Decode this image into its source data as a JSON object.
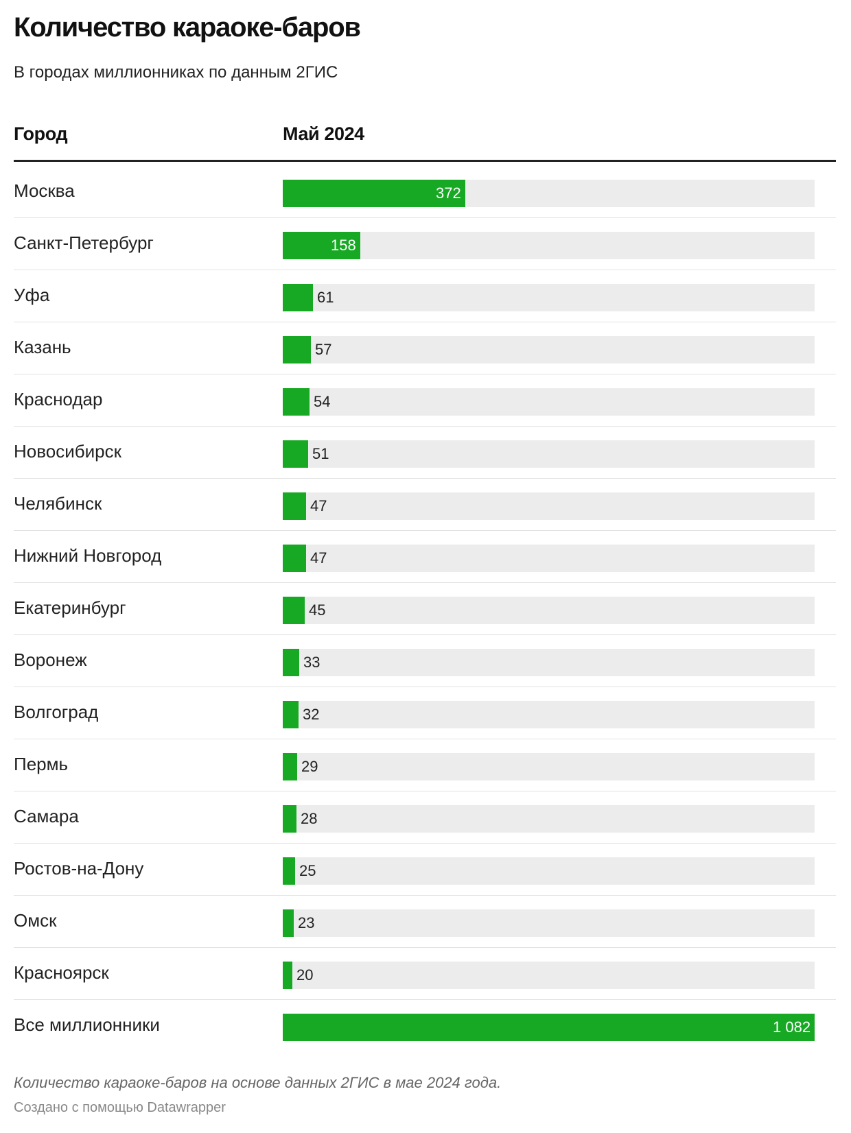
{
  "chart_data": {
    "type": "bar",
    "title": "Количество караоке-баров",
    "subtitle": "В городах миллионниках по данным 2ГИС",
    "column_headers": {
      "category": "Город",
      "value": "Май 2024"
    },
    "categories": [
      "Москва",
      "Санкт-Петербург",
      "Уфа",
      "Казань",
      "Краснодар",
      "Новосибирск",
      "Челябинск",
      "Нижний Новгород",
      "Екатеринбург",
      "Воронеж",
      "Волгоград",
      "Пермь",
      "Самара",
      "Ростов-на-Дону",
      "Омск",
      "Красноярск",
      "Все миллионники"
    ],
    "values": [
      372,
      158,
      61,
      57,
      54,
      51,
      47,
      47,
      45,
      33,
      32,
      29,
      28,
      25,
      23,
      20,
      1082
    ],
    "value_labels": [
      "372",
      "158",
      "61",
      "57",
      "54",
      "51",
      "47",
      "47",
      "45",
      "33",
      "32",
      "29",
      "28",
      "25",
      "23",
      "20",
      "1 082"
    ],
    "xlim": [
      0,
      1082
    ],
    "notes": "Количество караоке-баров на основе данных 2ГИС в мае 2024 года.",
    "credit": "Создано с помощью Datawrapper"
  },
  "colors": {
    "bar": "#18a924",
    "track": "#ececec",
    "separator": "#e2e2e2",
    "header_rule": "#222222"
  }
}
